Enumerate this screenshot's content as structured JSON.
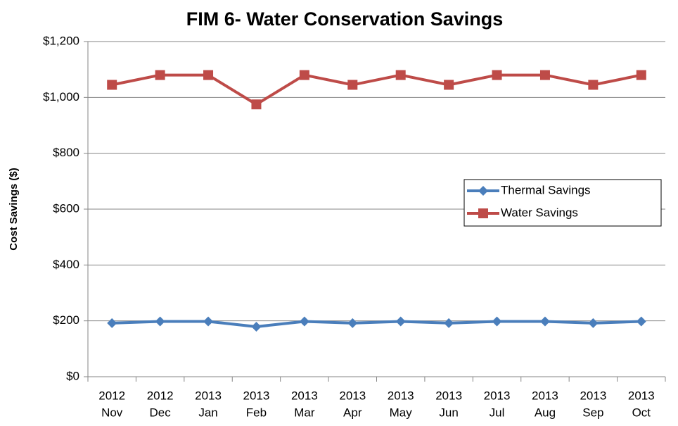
{
  "chart_data": {
    "type": "line",
    "title": "FIM 6- Water Conservation Savings",
    "y_label": "Cost Savings ($)",
    "categories": [
      [
        "2012",
        "Nov"
      ],
      [
        "2012",
        "Dec"
      ],
      [
        "2013",
        "Jan"
      ],
      [
        "2013",
        "Feb"
      ],
      [
        "2013",
        "Mar"
      ],
      [
        "2013",
        "Apr"
      ],
      [
        "2013",
        "May"
      ],
      [
        "2013",
        "Jun"
      ],
      [
        "2013",
        "Jul"
      ],
      [
        "2013",
        "Aug"
      ],
      [
        "2013",
        "Sep"
      ],
      [
        "2013",
        "Oct"
      ]
    ],
    "series": [
      {
        "name": "Thermal Savings",
        "color": "#4a7ebb",
        "marker": "diamond",
        "values": [
          192,
          198,
          198,
          179,
          198,
          192,
          198,
          192,
          198,
          198,
          192,
          198
        ]
      },
      {
        "name": "Water Savings",
        "color": "#be4b48",
        "marker": "square",
        "values": [
          1045,
          1080,
          1080,
          975,
          1080,
          1045,
          1080,
          1045,
          1080,
          1080,
          1045,
          1080
        ]
      }
    ],
    "ylim": [
      0,
      1200
    ],
    "yticks": [
      {
        "value": 0,
        "label": "$0"
      },
      {
        "value": 200,
        "label": "$200"
      },
      {
        "value": 400,
        "label": "$400"
      },
      {
        "value": 600,
        "label": "$600"
      },
      {
        "value": 800,
        "label": "$800"
      },
      {
        "value": 1000,
        "label": "$1,000"
      },
      {
        "value": 1200,
        "label": "$1,200"
      }
    ],
    "grid": true,
    "legend": "right"
  }
}
